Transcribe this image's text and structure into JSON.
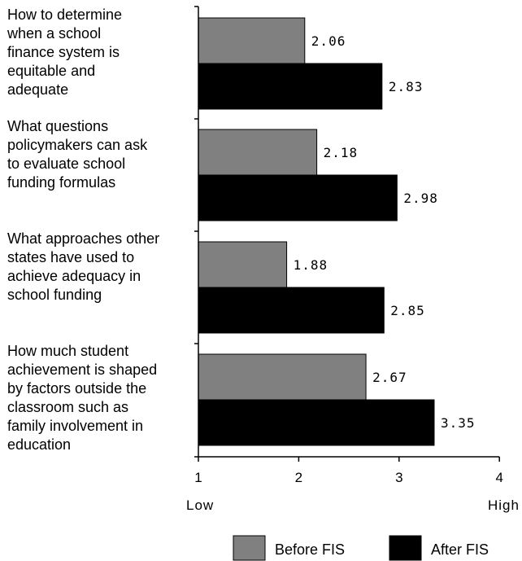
{
  "chart_data": {
    "type": "bar",
    "orientation": "horizontal",
    "categories": [
      [
        "How to determine",
        "when a school",
        "finance system is",
        "equitable and",
        "adequate"
      ],
      [
        "What questions",
        "policymakers can ask",
        "to evaluate school",
        "funding formulas"
      ],
      [
        "What approaches other",
        "states have used to",
        "achieve adequacy in",
        "school funding"
      ],
      [
        "How much student",
        "achievement is shaped",
        "by factors outside the",
        "classroom such as",
        "family involvement in",
        "education"
      ]
    ],
    "series": [
      {
        "name": "Before FIS",
        "color": "#808080",
        "values": [
          2.06,
          2.18,
          1.88,
          2.67
        ],
        "labels": [
          "2.06",
          "2.18",
          "1.88",
          "2.67"
        ]
      },
      {
        "name": "After FIS",
        "color": "#000000",
        "values": [
          2.83,
          2.98,
          2.85,
          3.35
        ],
        "labels": [
          "2.83",
          "2.98",
          "2.85",
          "3.35"
        ]
      }
    ],
    "xlim": [
      1,
      4
    ],
    "xticks": [
      "1",
      "2",
      "3",
      "4"
    ],
    "x_low_label": "Low",
    "x_high_label": "High",
    "legend_position": "bottom-right",
    "grid": false
  }
}
